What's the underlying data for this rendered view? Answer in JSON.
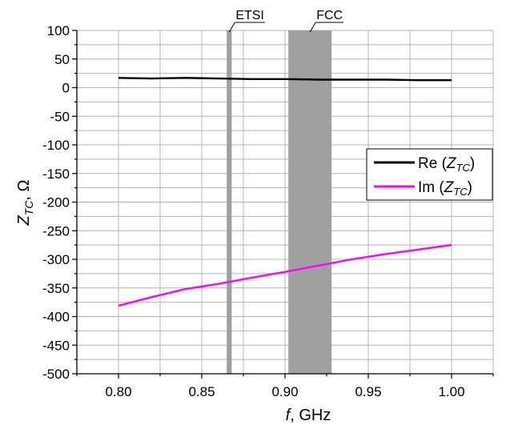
{
  "chart_data": {
    "type": "line",
    "xlabel": {
      "main": "f",
      "rest": ", GHz"
    },
    "ylabel": {
      "main": "Z",
      "sub": "TC",
      "rest": ", Ω"
    },
    "xlim": [
      0.775,
      1.025
    ],
    "ylim": [
      -500,
      100
    ],
    "xticks": [
      0.8,
      0.85,
      0.9,
      0.95,
      1.0
    ],
    "xtick_labels": [
      "0.80",
      "0.85",
      "0.90",
      "0.95",
      "1.00"
    ],
    "yticks": [
      100,
      50,
      0,
      -50,
      -100,
      -150,
      -200,
      -250,
      -300,
      -350,
      -400,
      -450,
      -500
    ],
    "ytick_labels": [
      "100",
      "50",
      "0",
      "-50",
      "-100",
      "-150",
      "-200",
      "-250",
      "-300",
      "-350",
      "-400",
      "-450",
      "-500"
    ],
    "grid": true,
    "legend_position": "right",
    "bands": [
      {
        "label": "ETSI",
        "x_start": 0.865,
        "x_end": 0.868,
        "color": "#a0a0a0"
      },
      {
        "label": "FCC",
        "x_start": 0.902,
        "x_end": 0.928,
        "color": "#a0a0a0"
      }
    ],
    "series": [
      {
        "name": {
          "prefix": "Re (",
          "main": "Z",
          "sub": "TC",
          "suffix": ")"
        },
        "color": "#000000",
        "x": [
          0.8,
          0.82,
          0.84,
          0.86,
          0.88,
          0.9,
          0.92,
          0.94,
          0.96,
          0.98,
          1.0
        ],
        "y": [
          17,
          16,
          17,
          16,
          15,
          15,
          14,
          14,
          14,
          13,
          13
        ]
      },
      {
        "name": {
          "prefix": "Im (",
          "main": "Z",
          "sub": "TC",
          "suffix": ")"
        },
        "color": "#ff00ff",
        "x": [
          0.8,
          0.82,
          0.84,
          0.86,
          0.88,
          0.9,
          0.92,
          0.94,
          0.96,
          0.98,
          1.0
        ],
        "y": [
          -381,
          -366,
          -352,
          -343,
          -332,
          -322,
          -311,
          -300,
          -291,
          -283,
          -275
        ]
      }
    ]
  }
}
